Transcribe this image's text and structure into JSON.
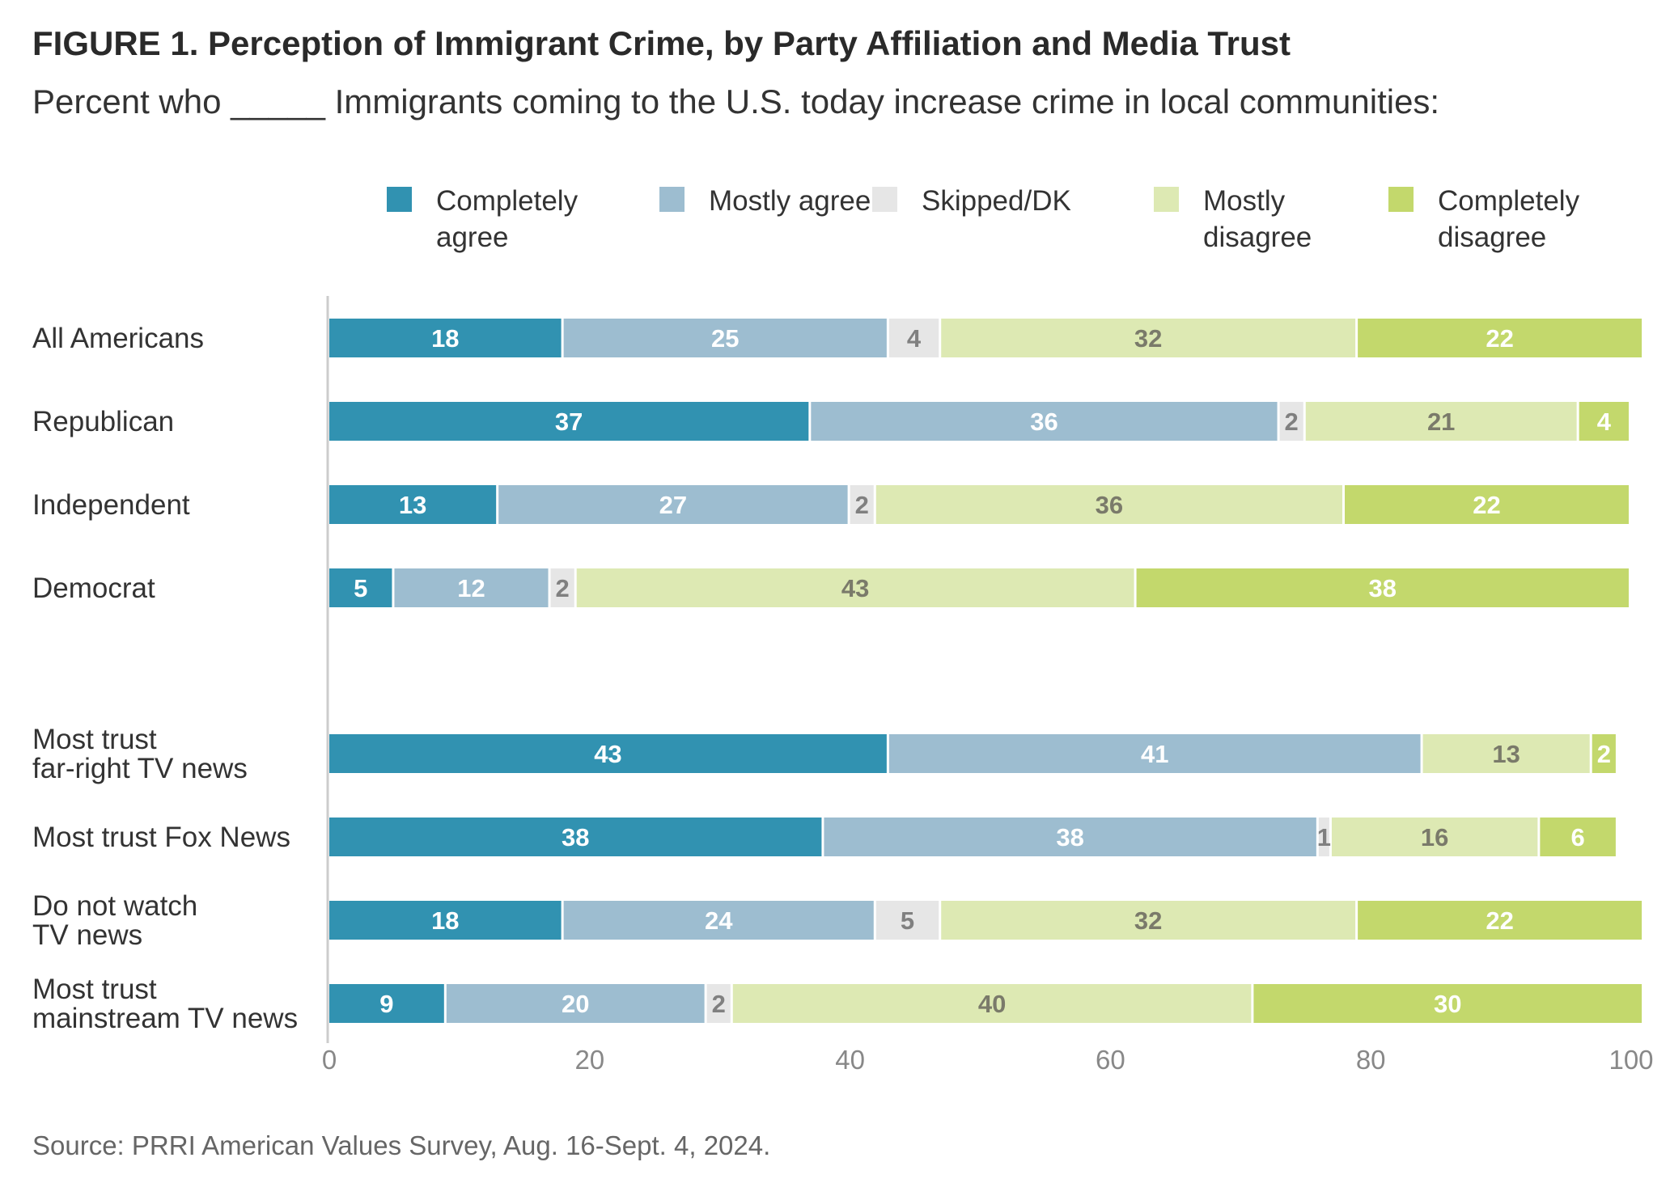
{
  "title": "FIGURE 1.  Perception of Immigrant Crime, by Party Affiliation and Media Trust",
  "subtitle": "Percent who _____ Immigrants coming to the U.S. today increase crime in local communities:",
  "source": "Source: PRRI American Values Survey, Aug. 16-Sept. 4, 2024.",
  "chart_data": {
    "type": "bar",
    "orientation": "horizontal",
    "stacked": true,
    "title": "FIGURE 1.  Perception of Immigrant Crime, by Party Affiliation and Media Trust",
    "xlabel": "",
    "ylabel": "",
    "xlim": [
      0,
      100
    ],
    "xticks": [
      "0",
      "20",
      "40",
      "60",
      "80",
      "100"
    ],
    "grid": false,
    "legend_position": "top",
    "categories": [
      "All Americans",
      "Republican",
      "Independent",
      "Democrat",
      "Most trust far-right TV news",
      "Most trust Fox News",
      "Do not watch TV news",
      "Most trust mainstream TV news"
    ],
    "category_labels": [
      [
        "All Americans"
      ],
      [
        "Republican"
      ],
      [
        "Independent"
      ],
      [
        "Democrat"
      ],
      [
        "Most trust",
        "far-right TV news"
      ],
      [
        "Most trust Fox News"
      ],
      [
        "Do not watch",
        "TV news"
      ],
      [
        "Most trust",
        "mainstream TV news"
      ]
    ],
    "series": [
      {
        "name": "Completely agree",
        "color": "#3192b1",
        "label_color": "#ffffff",
        "values": [
          18,
          37,
          13,
          5,
          43,
          38,
          18,
          9
        ]
      },
      {
        "name": "Mostly agree",
        "color": "#9dbdd0",
        "label_color": "#ffffff",
        "values": [
          25,
          36,
          27,
          12,
          41,
          38,
          24,
          20
        ]
      },
      {
        "name": "Skipped/DK",
        "color": "#e6e6e6",
        "label_color": "#808080",
        "values": [
          4,
          2,
          2,
          2,
          0,
          1,
          5,
          2
        ]
      },
      {
        "name": "Mostly disagree",
        "color": "#dde9b3",
        "label_color": "#7a7a6a",
        "values": [
          32,
          21,
          36,
          43,
          13,
          16,
          32,
          40
        ]
      },
      {
        "name": "Completely disagree",
        "color": "#c3d86c",
        "label_color": "#ffffff",
        "values": [
          22,
          4,
          22,
          38,
          2,
          6,
          22,
          30
        ]
      }
    ]
  }
}
